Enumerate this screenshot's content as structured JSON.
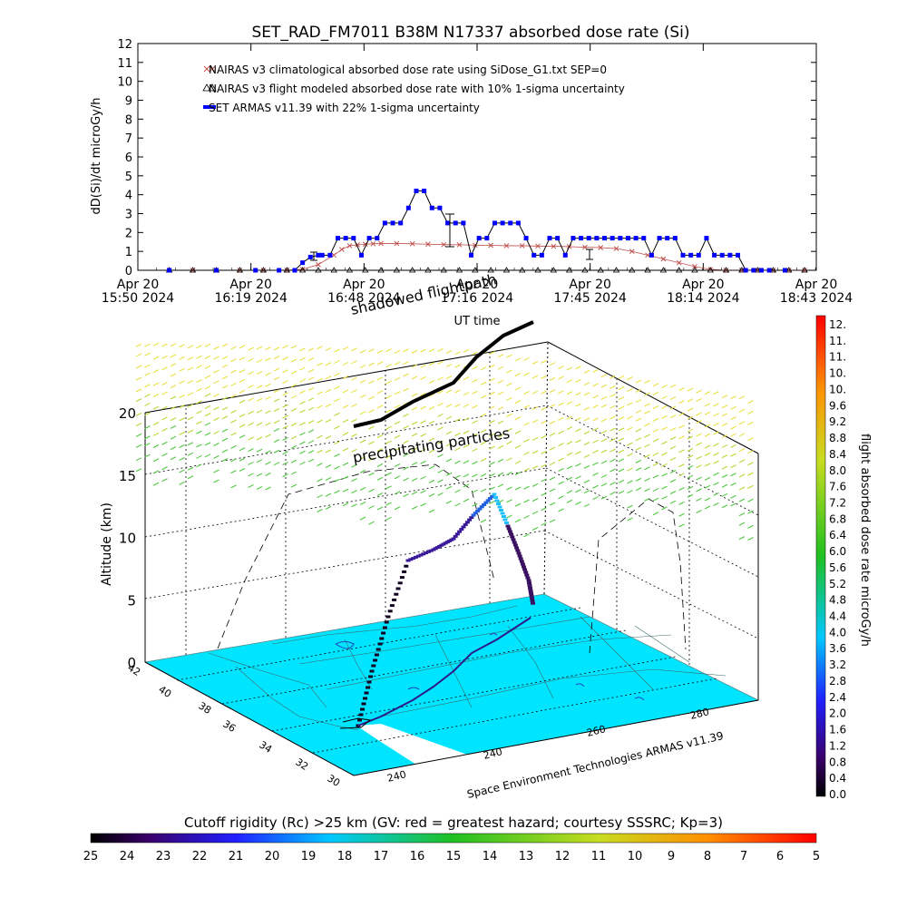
{
  "title": "SET_RAD_FM7011  B38M N17337 absorbed dose rate (Si)",
  "chart_data": [
    {
      "type": "line",
      "title": "SET_RAD_FM7011  B38M N17337 absorbed dose rate (Si)",
      "xlabel": "UT time",
      "ylabel": "dD(Si)/dt microGy/h",
      "ylim": [
        0,
        12
      ],
      "y_ticks": [
        "0",
        "1",
        "2",
        "3",
        "4",
        "5",
        "6",
        "7",
        "8",
        "9",
        "10",
        "11",
        "12"
      ],
      "x_ticks": [
        {
          "l1": "Apr 20",
          "l2": "15:50 2024"
        },
        {
          "l1": "Apr 20",
          "l2": "16:19 2024"
        },
        {
          "l1": "Apr 20",
          "l2": "16:48 2024"
        },
        {
          "l1": "Apr 20",
          "l2": "17:16 2024"
        },
        {
          "l1": "Apr 20",
          "l2": "17:45 2024"
        },
        {
          "l1": "Apr 20",
          "l2": "18:14 2024"
        },
        {
          "l1": "Apr 20",
          "l2": "18:43 2024"
        }
      ],
      "xlim_minutes": [
        0,
        173
      ],
      "series": [
        {
          "name": "NAIRAS v3 climatological absorbed dose rate using SiDose_G1.txt SEP=0",
          "color": "#c0504d",
          "marker": "x",
          "x": [
            8,
            14,
            20,
            26,
            32,
            38,
            42,
            46,
            50,
            52,
            54,
            56,
            58,
            60,
            62,
            66,
            70,
            74,
            78,
            82,
            86,
            90,
            94,
            98,
            102,
            106,
            110,
            114,
            118,
            122,
            126,
            130,
            134,
            138,
            142,
            146,
            150,
            154,
            158,
            162,
            166,
            170
          ],
          "values": [
            0,
            0,
            0,
            0,
            0,
            0,
            0.05,
            0.3,
            0.8,
            1.1,
            1.3,
            1.35,
            1.38,
            1.4,
            1.42,
            1.42,
            1.4,
            1.38,
            1.36,
            1.35,
            1.33,
            1.32,
            1.3,
            1.3,
            1.28,
            1.27,
            1.25,
            1.22,
            1.2,
            1.15,
            1.0,
            0.8,
            0.6,
            0.4,
            0.2,
            0.05,
            0,
            0,
            0,
            0,
            0,
            0
          ]
        },
        {
          "name": "NAIRAS v3 flight modeled absorbed dose rate with 10% 1-sigma uncertainty",
          "color": "#000000",
          "marker": "triangle",
          "x": [
            8,
            14,
            20,
            26,
            32,
            38,
            42,
            46,
            50,
            54,
            58,
            62,
            66,
            70,
            74,
            78,
            82,
            86,
            90,
            94,
            98,
            102,
            106,
            110,
            114,
            118,
            122,
            126,
            130,
            134,
            138,
            142,
            146,
            150,
            154,
            158,
            162,
            166,
            170
          ],
          "values": [
            0,
            0,
            0,
            0,
            0,
            0,
            0,
            0,
            0,
            0,
            0,
            0,
            0,
            0,
            0,
            0,
            0,
            0,
            0,
            0,
            0,
            0,
            0,
            0,
            0,
            0,
            0,
            0,
            0,
            0,
            0,
            0,
            0,
            0,
            0,
            0,
            0,
            0,
            0
          ]
        },
        {
          "name": "SET ARMAS v11.39 with 22% 1-sigma uncertainty",
          "color": "#0000ff",
          "marker": "square",
          "x": [
            8,
            20,
            30,
            36,
            40,
            42,
            44,
            46,
            47,
            49,
            51,
            53,
            55,
            57,
            59,
            61,
            63,
            65,
            67,
            69,
            71,
            73,
            75,
            77,
            79,
            81,
            83,
            85,
            87,
            89,
            91,
            93,
            95,
            97,
            99,
            101,
            103,
            105,
            107,
            109,
            111,
            113,
            115,
            117,
            119,
            121,
            123,
            125,
            127,
            129,
            131,
            133,
            135,
            137,
            139,
            141,
            143,
            145,
            147,
            149,
            151,
            153,
            155,
            157,
            159,
            161,
            165
          ],
          "values": [
            0,
            0,
            0,
            0,
            0,
            0.4,
            0.7,
            0.8,
            0.8,
            0.8,
            1.7,
            1.7,
            1.7,
            0.8,
            1.7,
            1.7,
            2.5,
            2.5,
            2.5,
            3.3,
            4.2,
            4.2,
            3.3,
            3.3,
            2.5,
            2.5,
            2.5,
            0.8,
            1.7,
            1.7,
            2.5,
            2.5,
            2.5,
            2.5,
            1.7,
            0.8,
            0.8,
            1.7,
            1.7,
            0.8,
            1.7,
            1.7,
            1.7,
            1.7,
            1.7,
            1.7,
            1.7,
            1.7,
            1.7,
            1.7,
            0.8,
            1.7,
            1.7,
            1.7,
            0.8,
            0.8,
            0.8,
            1.7,
            0.8,
            0.8,
            0.8,
            0.8,
            0,
            0,
            0,
            0,
            0
          ]
        }
      ]
    },
    {
      "type": "scatter",
      "xlabel": "",
      "ylabel": "Altitude (km)",
      "zlim": [
        0,
        20
      ],
      "z_ticks": [
        "0",
        "5",
        "10",
        "15",
        "20"
      ],
      "lat_ticks": [
        "42",
        "40",
        "38",
        "36",
        "34",
        "32",
        "30"
      ],
      "lon_ticks": [
        "240",
        "240",
        "260",
        "280"
      ],
      "credit": "Space Environment Technologies ARMAS v11.39",
      "annotations": [
        "precipitating particles",
        "shadowed flightpath"
      ],
      "colorbar": {
        "label": "flight absorbed dose rate microGy/h",
        "ticks": [
          "12.",
          "11.",
          "11.",
          "10.",
          "10.",
          "9.6",
          "9.2",
          "8.8",
          "8.4",
          "8.0",
          "7.6",
          "7.2",
          "6.8",
          "6.4",
          "6.0",
          "5.6",
          "5.2",
          "4.8",
          "4.4",
          "4.0",
          "3.6",
          "3.2",
          "2.8",
          "2.4",
          "2.0",
          "1.6",
          "1.2",
          "0.8",
          "0.4",
          "0.0"
        ]
      }
    },
    {
      "type": "heatmap",
      "title": "Cutoff rigidity (Rc) >25 km (GV: red = greatest hazard; courtesy SSSRC; Kp=3)",
      "ticks": [
        "25",
        "24",
        "23",
        "22",
        "21",
        "20",
        "19",
        "18",
        "17",
        "16",
        "15",
        "14",
        "13",
        "12",
        "11",
        "10",
        "9",
        "8",
        "7",
        "6",
        "5"
      ]
    }
  ]
}
